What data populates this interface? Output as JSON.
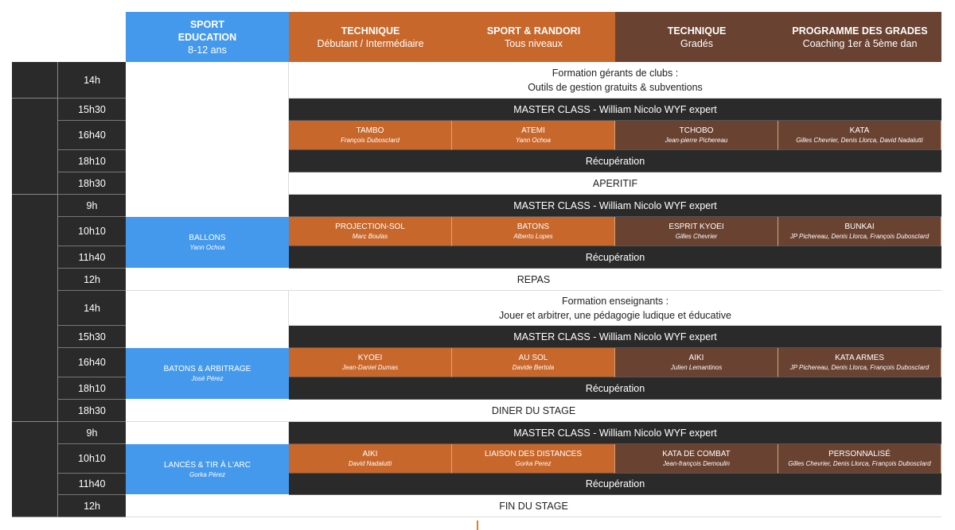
{
  "headers": [
    {
      "title1": "SPORT",
      "title2": "EDUCATION",
      "sub": "8-12 ans",
      "color": "#4599ec"
    },
    {
      "title": "TECHNIQUE",
      "sub": "Débutant / Intermédiaire",
      "color": "#c8672b"
    },
    {
      "title": "SPORT & RANDORI",
      "sub": "Tous niveaux",
      "color": "#c8672b"
    },
    {
      "title": "TECHNIQUE",
      "sub": "Gradés",
      "color": "#6a4231"
    },
    {
      "title": "PROGRAMME DES GRADES",
      "sub": "Coaching 1er à 5ème dan",
      "color": "#6a4231"
    }
  ],
  "times": [
    "14h",
    "15h30",
    "16h40",
    "18h10",
    "18h30",
    "9h",
    "10h10",
    "11h40",
    "12h",
    "14h",
    "15h30",
    "16h40",
    "18h10",
    "18h30",
    "9h",
    "10h10",
    "11h40",
    "12h"
  ],
  "rows": {
    "formation1": {
      "l1": "Formation gérants de clubs :",
      "l2": "Outils de gestion gratuits & subventions"
    },
    "master": "MASTER CLASS - William Nicolo WYF expert",
    "recup": "Récupération",
    "aperitif": "APERITIF",
    "repas": "REPAS",
    "formation2": {
      "l1": "Formation enseignants :",
      "l2": "Jouer et arbitrer, une pédagogie ludique et éducative"
    },
    "diner": "DINER DU STAGE",
    "fin": "FIN DU STAGE"
  },
  "sessions1": [
    {
      "title": "TAMBO",
      "name": "François DuboscIard"
    },
    {
      "title": "ATEMI",
      "name": "Yann Ochoa"
    },
    {
      "title": "TCHOBO",
      "name": "Jean-pierre Pichereau"
    },
    {
      "title": "KATA",
      "name": "Gilles Chevrier, Denis Llorca, David Nadalutti"
    }
  ],
  "sessions2": [
    {
      "title": "PROJECTION-SOL",
      "name": "Marc Boulas"
    },
    {
      "title": "BATONS",
      "name": "Alberto Lopes"
    },
    {
      "title": "ESPRIT KYOEI",
      "name": "Gilles Chevrier"
    },
    {
      "title": "BUNKAI",
      "name": "JP Pichereau, Denis Llorca, François DuboscIard"
    }
  ],
  "sessions3": [
    {
      "title": "KYOEI",
      "name": "Jean-Daniel Dumas"
    },
    {
      "title": "AU SOL",
      "name": "Davide Bertola"
    },
    {
      "title": "AIKI",
      "name": "Julien Lemantinos"
    },
    {
      "title": "KATA ARMES",
      "name": "JP Pichereau, Denis Llorca, François DuboscIard"
    }
  ],
  "sessions4": [
    {
      "title": "AIKI",
      "name": "David Nadalutti"
    },
    {
      "title": "LIAISON DES DISTANCES",
      "name": "Gorka Perez"
    },
    {
      "title": "KATA DE COMBAT",
      "name": "Jean-françois Demoulin"
    },
    {
      "title": "PERSONNALISÉ",
      "name": "Gilles Chevrier, Denis Llorca, François DuboscIard"
    }
  ],
  "education": [
    {
      "title": "BALLONS",
      "name": "Yann Ochoa"
    },
    {
      "title": "BATONS & ARBITRAGE",
      "name": "José Pérez"
    },
    {
      "title": "LANCÉS & TIR À L'ARC",
      "name": "Gorka Pérez"
    }
  ]
}
